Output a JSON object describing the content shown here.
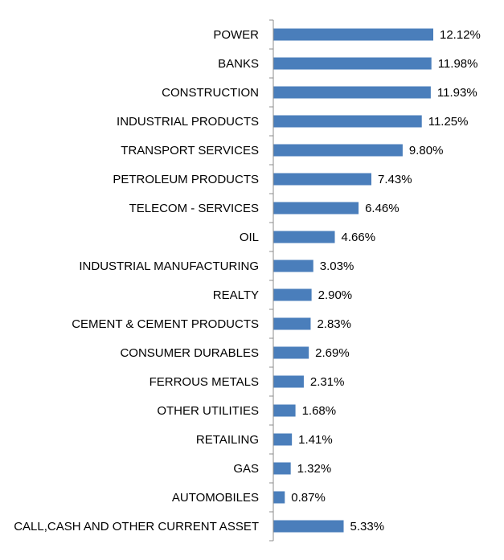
{
  "chart_data": {
    "type": "bar",
    "orientation": "horizontal",
    "title": "",
    "xlabel": "",
    "ylabel": "",
    "grid": false,
    "legend": "none",
    "bar_color": "#4a7ebb",
    "xlim": [
      0,
      13
    ],
    "categories": [
      "POWER",
      "BANKS",
      "CONSTRUCTION",
      "INDUSTRIAL PRODUCTS",
      "TRANSPORT SERVICES",
      "PETROLEUM PRODUCTS",
      "TELECOM - SERVICES",
      "OIL",
      "INDUSTRIAL MANUFACTURING",
      "REALTY",
      "CEMENT & CEMENT PRODUCTS",
      "CONSUMER DURABLES",
      "FERROUS METALS",
      "OTHER UTILITIES",
      "RETAILING",
      "GAS",
      "AUTOMOBILES",
      "CALL,CASH AND OTHER CURRENT ASSET"
    ],
    "values": [
      12.12,
      11.98,
      11.93,
      11.25,
      9.8,
      7.43,
      6.46,
      4.66,
      3.03,
      2.9,
      2.83,
      2.69,
      2.31,
      1.68,
      1.41,
      1.32,
      0.87,
      5.33
    ],
    "value_labels": [
      "12.12%",
      "11.98%",
      "11.93%",
      "11.25%",
      "9.80%",
      "7.43%",
      "6.46%",
      "4.66%",
      "3.03%",
      "2.90%",
      "2.83%",
      "2.69%",
      "2.31%",
      "1.68%",
      "1.41%",
      "1.32%",
      "0.87%",
      "5.33%"
    ]
  }
}
